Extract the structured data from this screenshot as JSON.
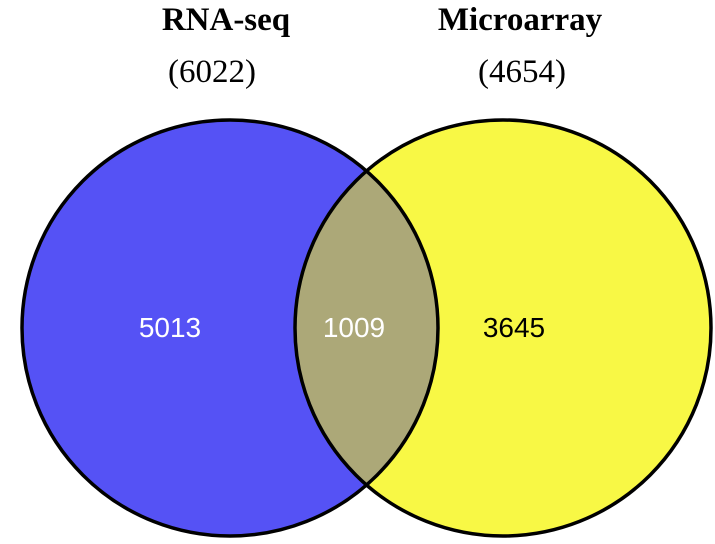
{
  "sets": [
    {
      "title": "RNA-seq",
      "count": "(6022)",
      "color": "#5552f5"
    },
    {
      "title": "Microarray",
      "count": "(4654)",
      "color": "#f8f845"
    }
  ],
  "regions": {
    "left_only": {
      "value": "5013",
      "text_color": "#ffffff"
    },
    "overlap": {
      "value": "1009",
      "text_color": "#ffffff",
      "color": "#aca878"
    },
    "right_only": {
      "value": "3645",
      "text_color": "#000000"
    }
  },
  "outline_color": "#000000"
}
